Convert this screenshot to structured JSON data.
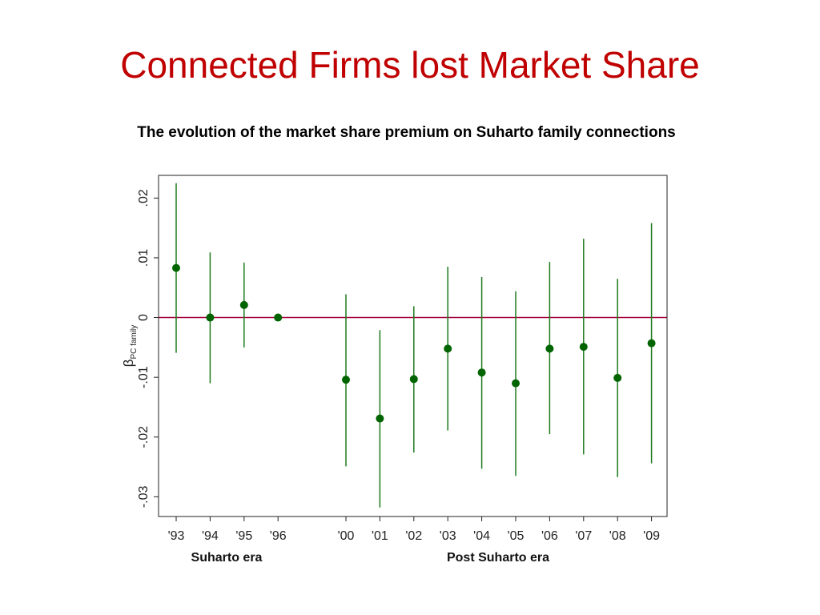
{
  "slide": {
    "title": "Connected Firms lost Market Share",
    "subtitle": "The evolution of the market share premium on Suharto family connections"
  },
  "chart_data": {
    "type": "scatter",
    "error_bars": true,
    "categories": [
      "'93",
      "'94",
      "'95",
      "'96",
      "'00",
      "'01",
      "'02",
      "'03",
      "'04",
      "'05",
      "'06",
      "'07",
      "'08",
      "'09"
    ],
    "values": [
      0.0083,
      0.0,
      0.0021,
      0.0,
      -0.0104,
      -0.0169,
      -0.0103,
      -0.0052,
      -0.0092,
      -0.011,
      -0.0052,
      -0.0049,
      -0.0101,
      -0.0043
    ],
    "ci_low": [
      -0.0059,
      -0.011,
      -0.005,
      0.0,
      -0.0249,
      -0.0318,
      -0.0226,
      -0.0189,
      -0.0253,
      -0.0265,
      -0.0195,
      -0.0229,
      -0.0267,
      -0.0244
    ],
    "ci_high": [
      0.0225,
      0.0109,
      0.0092,
      0.0,
      0.0039,
      -0.0021,
      0.0019,
      0.0085,
      0.0068,
      0.0044,
      0.0093,
      0.0132,
      0.0065,
      0.0158
    ],
    "ylabel": "βPC family",
    "yticks": [
      0.02,
      0.01,
      0,
      -0.01,
      -0.02,
      -0.03
    ],
    "ytick_labels": [
      ".02",
      ".01",
      "0",
      "-.01",
      "-.02",
      "-.03"
    ],
    "ylim": [
      -0.0333,
      0.0238
    ],
    "reference_line": 0,
    "group_labels": [
      "Suharto era",
      "Post Suharto era"
    ],
    "grid": false,
    "colors": {
      "marker": "#006400",
      "bar": "#1e7a1e",
      "reference_line": "#a0003c",
      "title": "#c00000"
    }
  }
}
